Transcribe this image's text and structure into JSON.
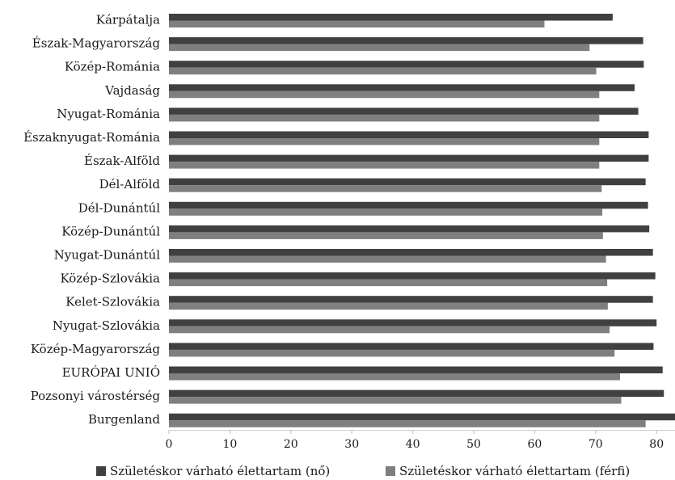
{
  "chart_data": {
    "type": "bar",
    "orientation": "horizontal",
    "categories": [
      "Kárpátalja",
      "Észak-Magyarország",
      "Közép-Románia",
      "Vajdaság",
      "Nyugat-Románia",
      "Északnyugat-Románia",
      "Észak-Alföld",
      "Dél-Alföld",
      "Dél-Dunántúl",
      "Közép-Dunántúl",
      "Nyugat-Dunántúl",
      "Közép-Szlovákia",
      "Kelet-Szlovákia",
      "Nyugat-Szlovákia",
      "Közép-Magyarország",
      "EURÓPAI UNIÓ",
      "Pozsonyi várostérség",
      "Burgenland"
    ],
    "series": [
      {
        "name": "Születéskor várható élettartam (nő)",
        "color": "#404040",
        "values": [
          72.8,
          77.8,
          77.9,
          76.4,
          77.0,
          78.7,
          78.7,
          78.2,
          78.6,
          78.8,
          79.4,
          79.8,
          79.4,
          80.0,
          79.5,
          81.0,
          81.2,
          83.5
        ]
      },
      {
        "name": "Születéskor várható élettartam (férfi)",
        "color": "#7f7f7f",
        "values": [
          61.6,
          69.0,
          70.1,
          70.6,
          70.6,
          70.6,
          70.6,
          71.0,
          71.1,
          71.2,
          71.7,
          71.9,
          72.0,
          72.3,
          73.1,
          74.0,
          74.2,
          78.2
        ]
      }
    ],
    "xlim": [
      0,
      85
    ],
    "xticks": [
      "0",
      "10",
      "20",
      "30",
      "40",
      "50",
      "60",
      "70",
      "80"
    ],
    "grid": false,
    "legend_position": "bottom"
  }
}
